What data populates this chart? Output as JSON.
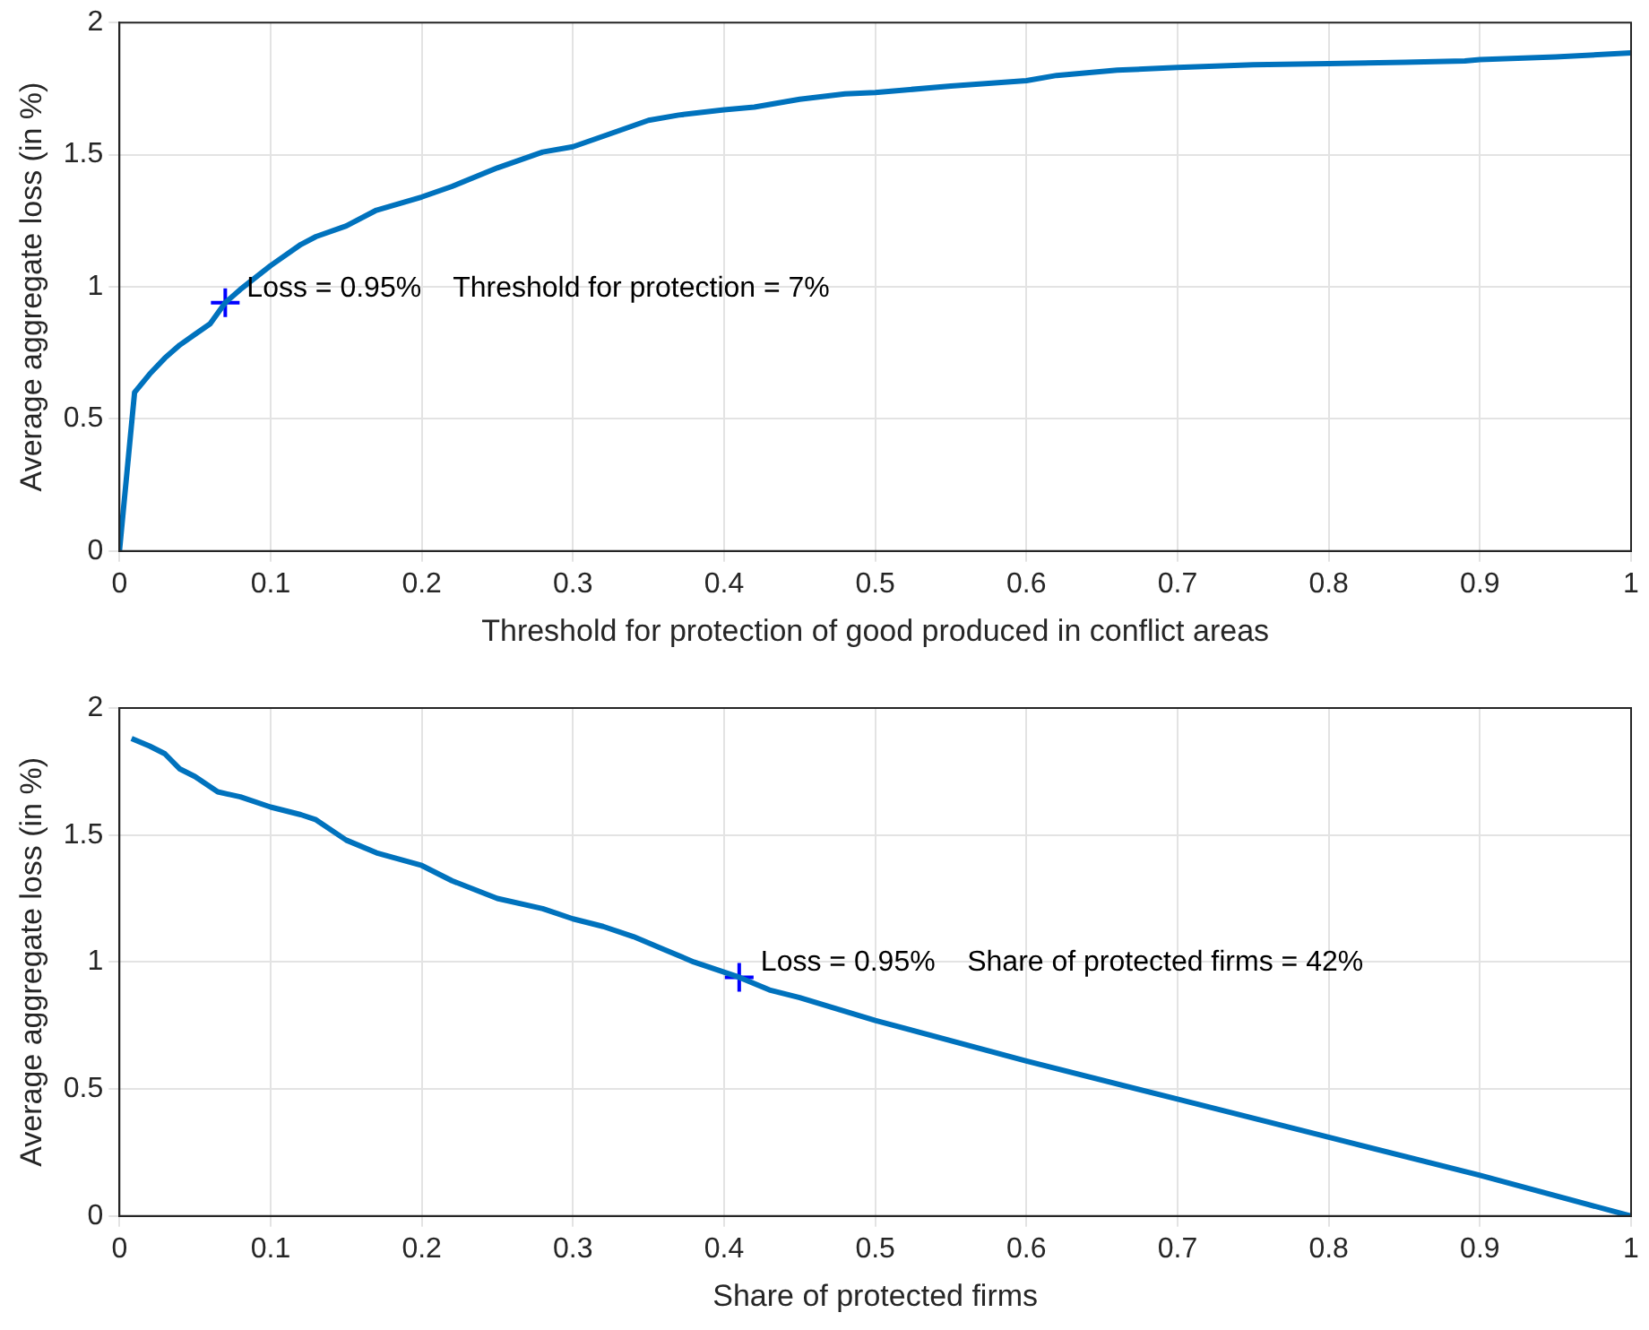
{
  "chart_data": [
    {
      "type": "line",
      "xlabel": "Threshold for protection of good produced in conflict areas",
      "ylabel": "Average aggregate loss (in %)",
      "xlim": [
        0,
        1
      ],
      "xticks": [
        0,
        0.1,
        0.2,
        0.3,
        0.4,
        0.5,
        0.6,
        0.7,
        0.8,
        0.9,
        1
      ],
      "ylim": [
        0,
        2
      ],
      "yticks": [
        0,
        0.5,
        1,
        1.5,
        2
      ],
      "grid": true,
      "annotations": [
        {
          "text": "Loss = 0.95%    Threshold for protection = 7%",
          "x": 0.07,
          "y": 0.94
        }
      ],
      "series": [
        {
          "type": "line",
          "color": "#0072bd",
          "x": [
            0,
            0.01,
            0.02,
            0.03,
            0.04,
            0.05,
            0.06,
            0.07,
            0.08,
            0.1,
            0.12,
            0.13,
            0.15,
            0.17,
            0.2,
            0.22,
            0.25,
            0.28,
            0.3,
            0.32,
            0.35,
            0.37,
            0.4,
            0.42,
            0.45,
            0.48,
            0.5,
            0.55,
            0.6,
            0.62,
            0.66,
            0.7,
            0.75,
            0.8,
            0.85,
            0.89,
            0.9,
            0.95,
            1
          ],
          "values": [
            0,
            0.6,
            0.67,
            0.73,
            0.78,
            0.82,
            0.86,
            0.94,
            0.99,
            1.08,
            1.16,
            1.19,
            1.23,
            1.29,
            1.34,
            1.38,
            1.45,
            1.51,
            1.53,
            1.57,
            1.63,
            1.65,
            1.67,
            1.68,
            1.71,
            1.73,
            1.735,
            1.76,
            1.78,
            1.8,
            1.82,
            1.83,
            1.84,
            1.845,
            1.85,
            1.855,
            1.86,
            1.87,
            1.885
          ]
        },
        {
          "type": "scatter",
          "color": "#0000ff",
          "marker": "cross",
          "x": [
            0.07
          ],
          "values": [
            0.94
          ]
        }
      ]
    },
    {
      "type": "line",
      "xlabel": "Share of protected firms",
      "ylabel": "Average aggregate loss (in %)",
      "xlim": [
        0,
        1
      ],
      "xticks": [
        0,
        0.1,
        0.2,
        0.3,
        0.4,
        0.5,
        0.6,
        0.7,
        0.8,
        0.9,
        1
      ],
      "ylim": [
        0,
        2
      ],
      "yticks": [
        0,
        0.5,
        1,
        1.5,
        2
      ],
      "grid": true,
      "annotations": [
        {
          "text": "Loss = 0.95%    Share of protected firms = 42%",
          "x": 0.41,
          "y": 0.94
        }
      ],
      "series": [
        {
          "type": "line",
          "color": "#0072bd",
          "x": [
            0.008,
            0.02,
            0.03,
            0.04,
            0.05,
            0.065,
            0.08,
            0.1,
            0.12,
            0.13,
            0.15,
            0.17,
            0.2,
            0.22,
            0.25,
            0.28,
            0.3,
            0.32,
            0.34,
            0.36,
            0.38,
            0.41,
            0.43,
            0.45,
            0.5,
            0.6,
            0.7,
            0.8,
            0.9,
            1
          ],
          "values": [
            1.88,
            1.85,
            1.82,
            1.76,
            1.73,
            1.67,
            1.65,
            1.61,
            1.58,
            1.56,
            1.48,
            1.43,
            1.38,
            1.32,
            1.25,
            1.21,
            1.17,
            1.14,
            1.1,
            1.05,
            1.0,
            0.94,
            0.89,
            0.86,
            0.77,
            0.61,
            0.46,
            0.31,
            0.16,
            0
          ]
        },
        {
          "type": "scatter",
          "color": "#0000ff",
          "marker": "cross",
          "x": [
            0.41
          ],
          "values": [
            0.94
          ]
        }
      ]
    }
  ]
}
